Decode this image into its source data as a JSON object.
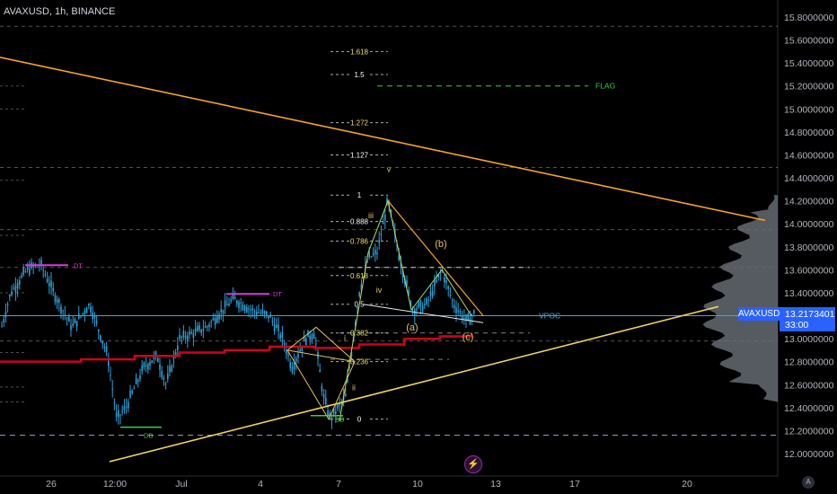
{
  "header": {
    "title": "AVAXUSD, 1h, BINANCE"
  },
  "price_axis": {
    "ticks": [
      "15.8000000",
      "15.6000000",
      "15.4000000",
      "15.2000000",
      "15.0000000",
      "14.8000000",
      "14.6000000",
      "14.4000000",
      "14.2000000",
      "14.0000000",
      "13.8000000",
      "13.6000000",
      "13.4000000",
      "13.2000000",
      "13.0000000",
      "12.8000000",
      "12.6000000",
      "12.4000000",
      "12.2000000",
      "12.0000000"
    ],
    "current_symbol": "AVAXUSD",
    "current_price": "13.2173401",
    "countdown": "33:00"
  },
  "time_axis": {
    "labels": [
      "26",
      "12:00",
      "Jul",
      "4",
      "7",
      "10",
      "13",
      "17",
      "20"
    ]
  },
  "fib_levels": [
    "1.618",
    "1.5",
    "1.272",
    "1.127",
    "1",
    "0.888",
    "0.786",
    "0.618",
    "0.5",
    "0.382",
    "0.236",
    "0"
  ],
  "labels": {
    "flag": "FLAG",
    "vpoc": "VPOC",
    "dt1": "DT",
    "dt2": "DT",
    "db1": "DB",
    "db2": "DB",
    "wave_v": "v",
    "wave_iii": "iii",
    "wave_iv": "iv",
    "wave_ii": "ii",
    "wave_i": "i",
    "wave_b": "(b)",
    "wave_a": "(a)",
    "wave_c": "(c)"
  },
  "buttons": {
    "auto": "A",
    "alert": "⚡"
  },
  "colors": {
    "background": "#000000",
    "candle": "#2ea0d6",
    "ma_line": "#d0021b",
    "trendline_upper": "#f5a623",
    "trendline_lower": "#f0d060",
    "elliott": "#e0c060",
    "flag_green": "#3ecf3e",
    "dt_magenta": "#d93bd9",
    "vpoc": "#4aa3df",
    "price_tag": "#2962ff"
  },
  "chart_data": {
    "type": "candlestick",
    "symbol": "AVAXUSD",
    "timeframe": "1h",
    "exchange": "BINANCE",
    "y_range": [
      11.9,
      15.9
    ],
    "last_price": 13.2173401,
    "close_path": [
      [
        "0",
        13.05
      ],
      [
        "12",
        13.4
      ],
      [
        "30",
        13.6
      ],
      [
        "45",
        13.65
      ],
      [
        "60",
        13.4
      ],
      [
        "80",
        13.1
      ],
      [
        "100",
        13.3
      ],
      [
        "120",
        12.85
      ],
      [
        "130",
        12.3
      ],
      [
        "140",
        12.4
      ],
      [
        "160",
        12.75
      ],
      [
        "175",
        12.85
      ],
      [
        "185",
        12.6
      ],
      [
        "200",
        13.0
      ],
      [
        "230",
        13.1
      ],
      [
        "260",
        13.35
      ],
      [
        "280",
        13.25
      ],
      [
        "300",
        13.2
      ],
      [
        "315",
        13.0
      ],
      [
        "325",
        12.75
      ],
      [
        "340",
        13.0
      ],
      [
        "350",
        13.05
      ],
      [
        "360",
        12.5
      ],
      [
        "368",
        12.3
      ],
      [
        "385",
        12.5
      ],
      [
        "400",
        13.4
      ],
      [
        "410",
        13.7
      ],
      [
        "420",
        13.75
      ],
      [
        "432",
        14.2
      ],
      [
        "445",
        13.7
      ],
      [
        "460",
        13.25
      ],
      [
        "475",
        13.3
      ],
      [
        "492",
        13.6
      ],
      [
        "505",
        13.3
      ],
      [
        "520",
        13.15
      ],
      [
        "528",
        13.22
      ]
    ],
    "moving_average": [
      [
        "0",
        12.8
      ],
      [
        "90",
        12.82
      ],
      [
        "150",
        12.85
      ],
      [
        "200",
        12.88
      ],
      [
        "250",
        12.9
      ],
      [
        "300",
        12.93
      ],
      [
        "350",
        12.92
      ],
      [
        "400",
        12.95
      ],
      [
        "450",
        13.0
      ],
      [
        "490",
        13.02
      ],
      [
        "525",
        13.05
      ]
    ],
    "fibonacci": [
      {
        "level": "1.618",
        "price": 15.5
      },
      {
        "level": "1.5",
        "price": 15.3
      },
      {
        "level": "1.272",
        "price": 14.88
      },
      {
        "level": "1.127",
        "price": 14.6
      },
      {
        "level": "1",
        "price": 14.25
      },
      {
        "level": "0.888",
        "price": 14.02
      },
      {
        "level": "0.786",
        "price": 13.85
      },
      {
        "level": "0.618",
        "price": 13.55
      },
      {
        "level": "0.5",
        "price": 13.3
      },
      {
        "level": "0.382",
        "price": 13.05
      },
      {
        "level": "0.236",
        "price": 12.8
      },
      {
        "level": "0",
        "price": 12.3
      }
    ],
    "horizontal_levels": [
      {
        "name": "FLAG",
        "price": 15.2
      },
      {
        "name": "VPOC",
        "price": 13.2
      },
      {
        "name": "DT",
        "price": 13.62
      },
      {
        "name": "DB",
        "price": 12.16
      }
    ]
  }
}
